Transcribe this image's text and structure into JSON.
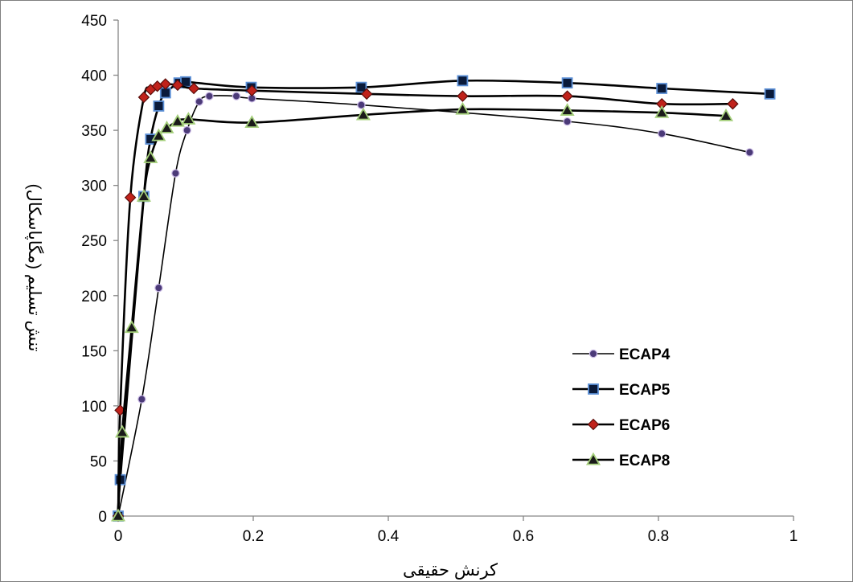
{
  "chart_data": {
    "type": "scatter",
    "xlabel": "کرنش حقیقی",
    "ylabel": "تنش تسلیم (مگاپاسکال)",
    "xlim": [
      0,
      1
    ],
    "ylim": [
      0,
      450
    ],
    "xticks": [
      0,
      0.2,
      0.4,
      0.6,
      0.8,
      1
    ],
    "xtick_labels": [
      "0",
      "0.2",
      "0.4",
      "0.6",
      "0.8",
      "1"
    ],
    "yticks": [
      0,
      50,
      100,
      150,
      200,
      250,
      300,
      350,
      400,
      450
    ],
    "ytick_labels": [
      "0",
      "50",
      "100",
      "150",
      "200",
      "250",
      "300",
      "350",
      "400",
      "450"
    ],
    "grid": false,
    "legend_position": "right",
    "series": [
      {
        "name": "ECAP4",
        "marker": "circle",
        "marker_fill": "#4b3a78",
        "marker_stroke": "#c9b9e4",
        "line_width": 1.6,
        "x": [
          0,
          0.035,
          0.06,
          0.085,
          0.102,
          0.12,
          0.135,
          0.175,
          0.198,
          0.36,
          0.665,
          0.805,
          0.935
        ],
        "y": [
          0,
          106,
          207,
          311,
          350,
          376,
          381,
          381,
          379,
          373,
          358,
          347,
          330
        ]
      },
      {
        "name": "ECAP5",
        "marker": "square",
        "marker_fill": "#0a1a3a",
        "marker_stroke": "#5b8fd6",
        "line_width": 2.6,
        "x": [
          0,
          0.003,
          0.038,
          0.048,
          0.06,
          0.07,
          0.09,
          0.1,
          0.197,
          0.36,
          0.51,
          0.665,
          0.805,
          0.965
        ],
        "y": [
          0,
          33,
          290,
          342,
          372,
          384,
          393,
          394,
          389,
          389,
          395,
          393,
          388,
          383
        ]
      },
      {
        "name": "ECAP6",
        "marker": "diamond",
        "marker_fill": "#c0221b",
        "marker_stroke": "#5a0d0a",
        "line_width": 2.6,
        "x": [
          0,
          0.003,
          0.018,
          0.038,
          0.048,
          0.058,
          0.07,
          0.088,
          0.112,
          0.198,
          0.368,
          0.51,
          0.665,
          0.805,
          0.91
        ],
        "y": [
          0,
          96,
          289,
          380,
          387,
          390,
          392,
          391,
          388,
          386,
          383,
          381,
          381,
          374,
          374
        ]
      },
      {
        "name": "ECAP8",
        "marker": "triangle",
        "marker_fill": "#1a1a1a",
        "marker_stroke": "#a4cf7a",
        "line_width": 2.6,
        "x": [
          0,
          0.006,
          0.02,
          0.038,
          0.048,
          0.06,
          0.072,
          0.088,
          0.104,
          0.198,
          0.363,
          0.51,
          0.665,
          0.805,
          0.9
        ],
        "y": [
          0,
          76,
          171,
          290,
          325,
          345,
          352,
          358,
          360,
          357,
          364,
          369,
          368,
          366,
          363
        ]
      }
    ]
  }
}
